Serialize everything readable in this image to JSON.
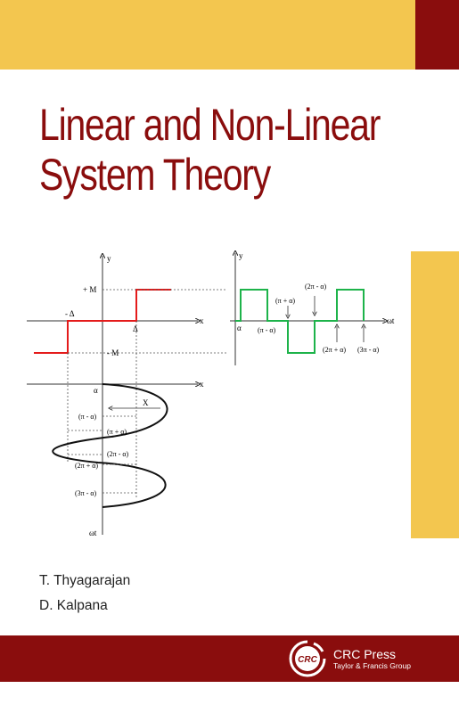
{
  "cover": {
    "title_line1": "Linear and Non-Linear",
    "title_line2": "System Theory",
    "authors": [
      "T. Thyagarajan",
      "D. Kalpana"
    ],
    "publisher": {
      "logo_text": "CRC",
      "name": "CRC Press",
      "subtitle": "Taylor & Francis Group"
    },
    "colors": {
      "yellow": "#f3c64f",
      "red": "#8a0d0d",
      "green": "#1db34a",
      "plot_red": "#e41b1b"
    }
  },
  "figure": {
    "y_label": "y",
    "x_label": "x",
    "plus_m": "+ M",
    "minus_m": "- M",
    "minus_delta": "- Δ",
    "delta": "Δ",
    "alpha": "α",
    "x_amp": "X",
    "wt": "ωt",
    "pi_minus_alpha": "(π - α)",
    "pi_plus_alpha": "(π + α)",
    "two_pi_minus_alpha": "(2π - α)",
    "two_pi_plus_alpha": "(2π + α)",
    "three_pi_minus_alpha": "(3π - α)"
  }
}
